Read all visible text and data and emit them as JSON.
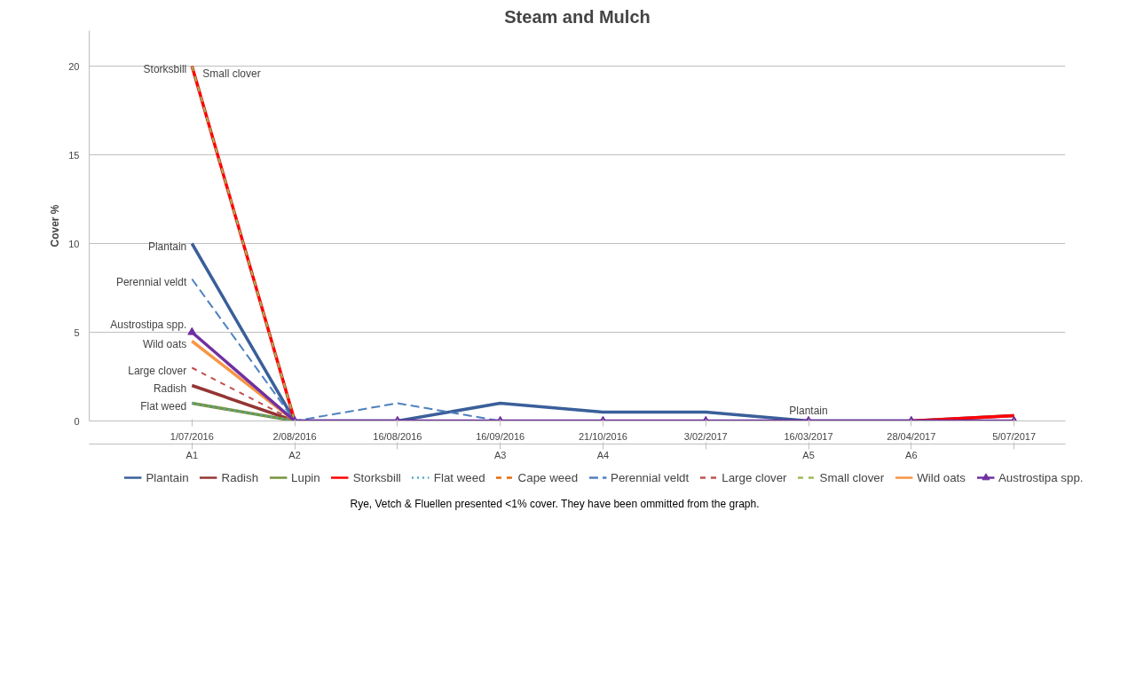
{
  "chart_data": {
    "type": "line",
    "title": "Steam and Mulch",
    "ylabel": "Cover %",
    "categories": [
      "1/07/2016\nA1",
      "2/08/2016\nA2",
      "16/08/2016",
      "16/09/2016\nA3",
      "21/10/2016\nA4",
      "3/02/2017",
      "16/03/2017\nA5",
      "28/04/2017\nA6",
      "5/07/2017"
    ],
    "series": [
      {
        "name": "Plantain",
        "color": "#3a5f9a",
        "values": [
          10,
          0,
          0,
          1,
          0.5,
          0.5,
          0,
          0,
          0.3
        ]
      },
      {
        "name": "Radish",
        "color": "#943634",
        "values": [
          2,
          0,
          null,
          null,
          null,
          null,
          null,
          null,
          null
        ]
      },
      {
        "name": "Lupin",
        "color": "#77933c",
        "values": [
          1,
          0,
          null,
          null,
          null,
          null,
          null,
          null,
          null
        ]
      },
      {
        "name": "Storksbill",
        "color": "#ff0000",
        "values": [
          20,
          0,
          null,
          null,
          null,
          null,
          null,
          0,
          0.3
        ]
      },
      {
        "name": "Flat weed",
        "color": "#4bacc6",
        "line_style": "dotted",
        "values": [
          1,
          0,
          null,
          null,
          null,
          null,
          null,
          null,
          null
        ]
      },
      {
        "name": "Cape weed",
        "color": "#e36c09",
        "line_style": "dashed",
        "values": [
          null,
          null,
          null,
          null,
          null,
          null,
          null,
          null,
          null
        ]
      },
      {
        "name": "Perennial veldt",
        "color": "#4f81bd",
        "line_style": "longdash",
        "values": [
          8,
          0,
          1,
          0,
          null,
          null,
          null,
          null,
          null
        ]
      },
      {
        "name": "Large clover",
        "color": "#c0504d",
        "line_style": "dashed",
        "values": [
          3,
          0,
          null,
          null,
          null,
          null,
          null,
          null,
          null
        ]
      },
      {
        "name": "Small clover",
        "color": "#9bbb59",
        "line_style": "dashed",
        "values": [
          20,
          0,
          null,
          null,
          null,
          null,
          null,
          null,
          null
        ]
      },
      {
        "name": "Wild oats",
        "color": "#f79646",
        "values": [
          4.5,
          0,
          null,
          null,
          null,
          null,
          null,
          null,
          null
        ]
      },
      {
        "name": "Austrostipa spp.",
        "color": "#7030a0",
        "marker": "triangle",
        "values": [
          5,
          0,
          0,
          0,
          0,
          0,
          0,
          0,
          0
        ]
      }
    ],
    "ylim": [
      0,
      22
    ],
    "yticks": [
      0,
      5,
      10,
      15,
      20
    ],
    "grid": "y",
    "legend": "bottom",
    "annotations": [
      {
        "text": "Storksbill",
        "x": "1/07/2016\nA1",
        "y": 20
      },
      {
        "text": "Small clover",
        "x": "1/07/2016\nA1",
        "y": 20
      },
      {
        "text": "Plantain",
        "x": "1/07/2016\nA1",
        "y": 10
      },
      {
        "text": "Perennial veldt",
        "x": "1/07/2016\nA1",
        "y": 8
      },
      {
        "text": "Austrostipa spp.",
        "x": "1/07/2016\nA1",
        "y": 5
      },
      {
        "text": "Wild oats",
        "x": "1/07/2016\nA1",
        "y": 4.5
      },
      {
        "text": "Large clover",
        "x": "1/07/2016\nA1",
        "y": 3
      },
      {
        "text": "Radish",
        "x": "1/07/2016\nA1",
        "y": 2
      },
      {
        "text": "Flat weed",
        "x": "1/07/2016\nA1",
        "y": 1
      },
      {
        "text": "Plantain",
        "x": "16/03/2017\nA5",
        "y": 0
      },
      "Rye, Vetch & Fluellen presented <1% cover. They have been ommitted from the graph."
    ]
  }
}
